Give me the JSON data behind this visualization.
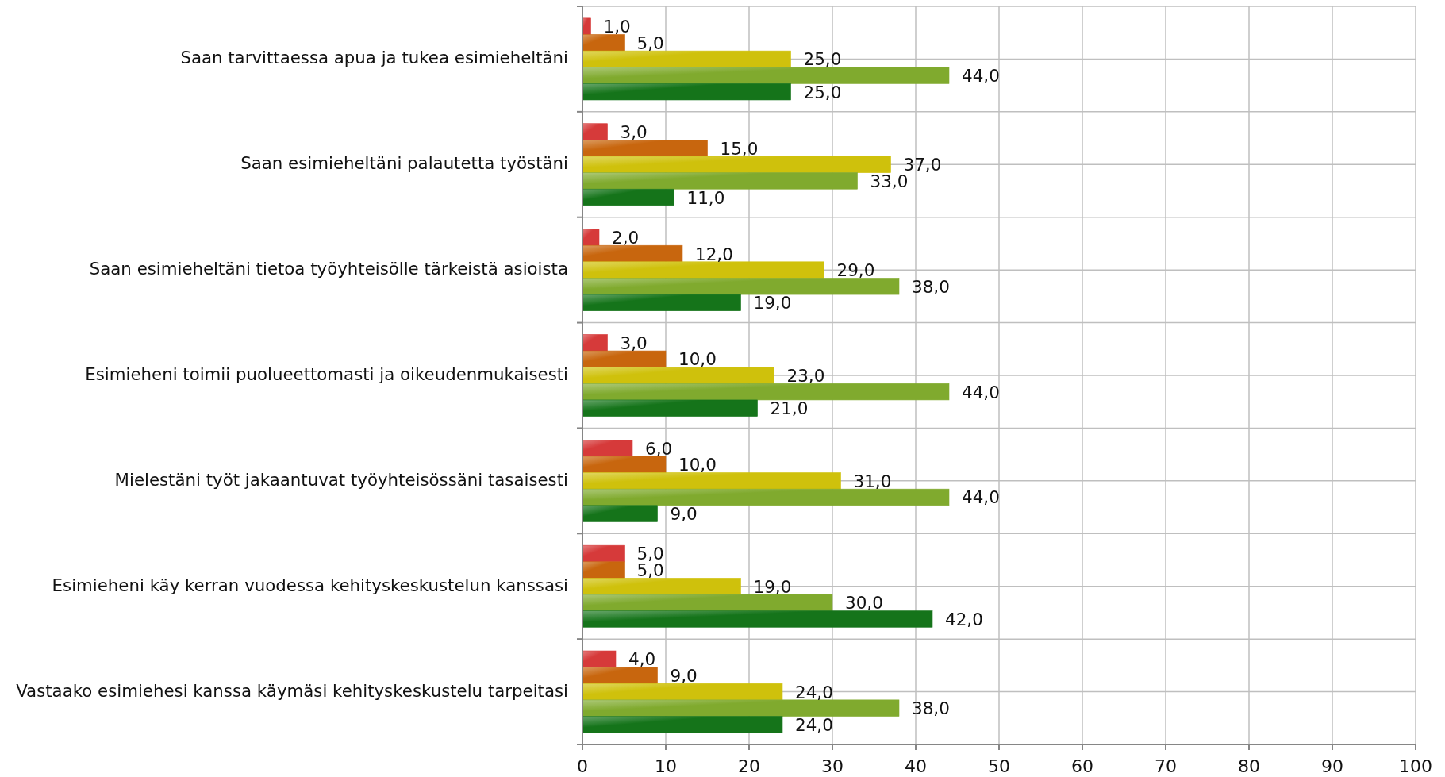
{
  "chart_data": {
    "type": "bar",
    "orientation": "horizontal",
    "categories": [
      "Saan tarvittaessa apua ja tukea esimieheltäni",
      "Saan esimieheltäni palautetta työstäni",
      "Saan esimieheltäni tietoa työyhteisölle tärkeistä asioista",
      "Esimieheni toimii puolueettomasti ja oikeudenmukaisesti",
      "Mielestäni työt jakaantuvat työyhteisössäni tasaisesti",
      "Esimieheni käy kerran vuodessa kehityskeskustelun kanssasi",
      "Vastaako esimiehesi kanssa käymäsi kehityskeskustelu tarpeitasi"
    ],
    "series": [
      {
        "color": "#d63a3a",
        "values": [
          1,
          3,
          2,
          3,
          6,
          5,
          4
        ],
        "value_labels": [
          "1,0",
          "3,0",
          "2,0",
          "3,0",
          "6,0",
          "5,0",
          "4,0"
        ]
      },
      {
        "color": "#c8660e",
        "values": [
          5,
          15,
          12,
          10,
          10,
          5,
          9
        ],
        "value_labels": [
          "5,0",
          "15,0",
          "12,0",
          "10,0",
          "10,0",
          "5,0",
          "9,0"
        ]
      },
      {
        "color": "#cfc10c",
        "values": [
          25,
          37,
          29,
          23,
          31,
          19,
          24
        ],
        "value_labels": [
          "25,0",
          "37,0",
          "29,0",
          "23,0",
          "31,0",
          "19,0",
          "24,0"
        ]
      },
      {
        "color": "#80aa2e",
        "values": [
          44,
          33,
          38,
          44,
          44,
          30,
          38
        ],
        "value_labels": [
          "44,0",
          "33,0",
          "38,0",
          "44,0",
          "44,0",
          "30,0",
          "38,0"
        ]
      },
      {
        "color": "#15741a",
        "values": [
          25,
          11,
          19,
          21,
          9,
          42,
          24
        ],
        "value_labels": [
          "25,0",
          "11,0",
          "19,0",
          "21,0",
          "9,0",
          "42,0",
          "24,0"
        ]
      }
    ],
    "xlim": [
      0,
      100
    ],
    "xticks": [
      0,
      10,
      20,
      30,
      40,
      50,
      60,
      70,
      80,
      90,
      100
    ],
    "grid": true
  }
}
